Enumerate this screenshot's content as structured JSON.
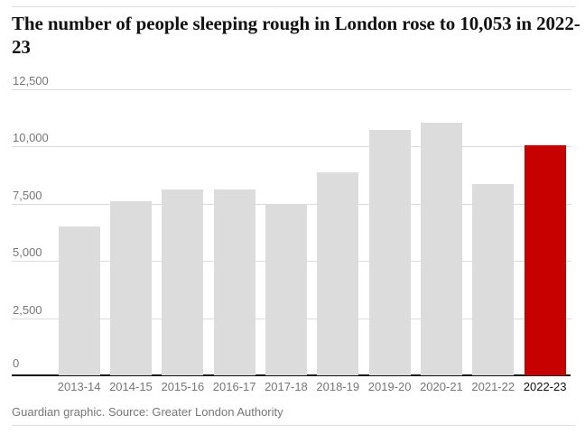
{
  "header": {
    "title": "The number of people sleeping rough in London rose to 10,053 in 2022-23"
  },
  "footer": {
    "caption": "Guardian graphic. Source: Greater London Authority"
  },
  "chart_data": {
    "type": "bar",
    "title": "The number of people sleeping rough in London rose to 10,053 in 2022-23",
    "source": "Guardian graphic. Source: Greater London Authority",
    "categories": [
      "2013-14",
      "2014-15",
      "2015-16",
      "2016-17",
      "2017-18",
      "2018-19",
      "2019-20",
      "2020-21",
      "2021-22",
      "2022-23"
    ],
    "values": [
      6508,
      7581,
      8096,
      8108,
      7484,
      8855,
      10726,
      11018,
      8329,
      10053
    ],
    "highlight_category": "2022-23",
    "highlight_index": 9,
    "highlight_value": 10053,
    "xlabel": "",
    "ylabel": "",
    "ylim": [
      0,
      12500
    ],
    "yticks": [
      0,
      2500,
      5000,
      7500,
      10000,
      12500
    ],
    "ytick_labels": [
      "0",
      "2,500",
      "5,000",
      "7,500",
      "10,000",
      "12,500"
    ],
    "grid": true,
    "legend": "none",
    "colors": {
      "bar_default": "#dcdcdc",
      "bar_highlight": "#c70000",
      "gridline": "#dcdcdc",
      "axis_line": "#121212",
      "tick_label": "#767676",
      "tick_label_highlight": "#121212",
      "title_text": "#121212",
      "caption_text": "#767676"
    }
  }
}
